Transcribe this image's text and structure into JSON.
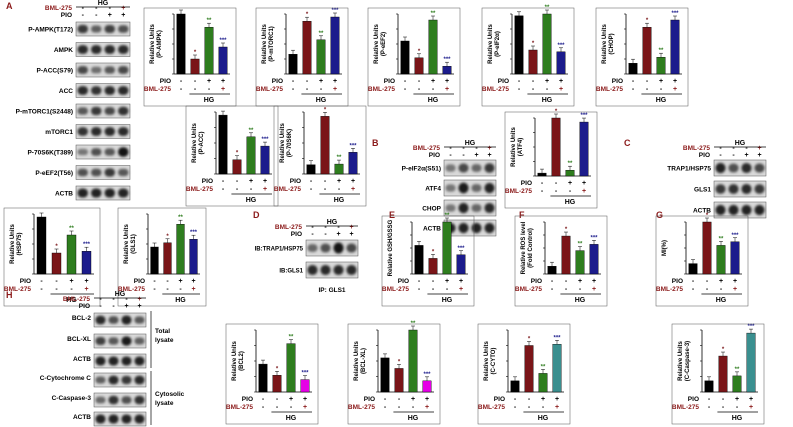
{
  "figure": {
    "panel_letters": [
      "A",
      "B",
      "C",
      "D",
      "E",
      "F",
      "G",
      "H"
    ],
    "colors": {
      "control": "#000000",
      "hg": "#7a1518",
      "hg_pio": "#2e7d1e",
      "hg_pio_bml": "#1c1c8c",
      "hg_pio_bml_h_bcl": "#e600e6",
      "hg_pio_bml_h_teal": "#3a8f8f",
      "red_text": "#8b1a1a"
    },
    "labels": {
      "hg": "HG",
      "pio": "PIO",
      "bml": "BML-275",
      "minus": "-",
      "plus": "+",
      "actb": "ACTB",
      "star1": "*",
      "star2": "**",
      "star3": "***",
      "total_lysate": "Total lysate",
      "cytosolic_lysate": "Cytosolic lysate",
      "ip_gls1": "IP: GLS1"
    },
    "panel_a_blots": [
      "P-AMPK(T172)",
      "AMPK",
      "P-ACC(S79)",
      "ACC",
      "P-mTORC1(S2448)",
      "mTORC1",
      "P-70S6K(T389)",
      "P-eEF2(T56)",
      "ACTB"
    ],
    "panel_b_blots": [
      "P-eIF2α(S51)",
      "ATF4",
      "CHOP",
      "ACTB"
    ],
    "panel_c_blots": [
      "TRAP1/HSP75",
      "GLS1",
      "ACTB"
    ],
    "panel_d_blots": [
      "IB:TRAP1/HSP75",
      "IB:GLS1"
    ],
    "panel_h_blots": [
      "BCL-2",
      "BCL-XL",
      "ACTB",
      "C-Cytochrome C",
      "C-Caspase-3",
      "ACTB"
    ]
  },
  "chart_data": [
    {
      "type": "bar",
      "panel": "A",
      "ylabel": "Relative Units (P-AMPK)",
      "categories": [
        "Ctrl",
        "HG",
        "HG+PIO",
        "HG+PIO+BML-275"
      ],
      "values": [
        1.0,
        0.25,
        0.78,
        0.45
      ],
      "significance": [
        "",
        "*",
        "**",
        "***"
      ]
    },
    {
      "type": "bar",
      "panel": "A",
      "ylabel": "Relative Units (P-mTORC1)",
      "categories": [
        "Ctrl",
        "HG",
        "HG+PIO",
        "HG+PIO+BML-275"
      ],
      "values": [
        0.33,
        0.88,
        0.57,
        0.95
      ],
      "significance": [
        "",
        "*",
        "**",
        "***"
      ]
    },
    {
      "type": "bar",
      "panel": "A",
      "ylabel": "Relative Units (P-eEF2)",
      "categories": [
        "Ctrl",
        "HG",
        "HG+PIO",
        "HG+PIO+BML-275"
      ],
      "values": [
        0.55,
        0.27,
        0.9,
        0.13
      ],
      "significance": [
        "",
        "*",
        "**",
        "***"
      ]
    },
    {
      "type": "bar",
      "panel": "A",
      "ylabel": "Relative Units (P-eIF2α)",
      "categories": [
        "Ctrl",
        "HG",
        "HG+PIO",
        "HG+PIO+BML-275"
      ],
      "values": [
        0.97,
        0.4,
        1.0,
        0.37
      ],
      "significance": [
        "",
        "*",
        "**",
        "***"
      ]
    },
    {
      "type": "bar",
      "panel": "A",
      "ylabel": "Relative Units (CHOP)",
      "categories": [
        "Ctrl",
        "HG",
        "HG+PIO",
        "HG+PIO+BML-275"
      ],
      "values": [
        0.18,
        0.78,
        0.28,
        0.9
      ],
      "significance": [
        "",
        "*",
        "**",
        "***"
      ]
    },
    {
      "type": "bar",
      "panel": "A",
      "ylabel": "Relative Units (P-ACC)",
      "categories": [
        "Ctrl",
        "HG",
        "HG+PIO",
        "HG+PIO+BML-275"
      ],
      "values": [
        0.95,
        0.23,
        0.6,
        0.45
      ],
      "significance": [
        "",
        "*",
        "**",
        "***"
      ]
    },
    {
      "type": "bar",
      "panel": "A",
      "ylabel": "Relative Units (P-70S6K)",
      "categories": [
        "Ctrl",
        "HG",
        "HG+PIO",
        "HG+PIO+BML-275"
      ],
      "values": [
        0.15,
        0.93,
        0.16,
        0.35
      ],
      "significance": [
        "",
        "*",
        "**",
        "***"
      ]
    },
    {
      "type": "bar",
      "panel": "B",
      "ylabel": "Relative Units (ATF4)",
      "categories": [
        "Ctrl",
        "HG",
        "HG+PIO",
        "HG+PIO+BML-275"
      ],
      "values": [
        0.05,
        1.0,
        0.1,
        0.93
      ],
      "significance": [
        "",
        "*",
        "**",
        "***"
      ]
    },
    {
      "type": "bar",
      "panel": "C",
      "ylabel": "Relative Units (HSP75)",
      "categories": [
        "Ctrl",
        "HG",
        "HG+PIO",
        "HG+PIO+BML-275"
      ],
      "values": [
        0.95,
        0.35,
        0.65,
        0.38
      ],
      "significance": [
        "",
        "*",
        "**",
        "***"
      ]
    },
    {
      "type": "bar",
      "panel": "C",
      "ylabel": "Relative Units (GLS1)",
      "categories": [
        "Ctrl",
        "HG",
        "HG+PIO",
        "HG+PIO+BML-275"
      ],
      "values": [
        0.45,
        0.52,
        0.83,
        0.58
      ],
      "significance": [
        "",
        "*",
        "**",
        "***"
      ]
    },
    {
      "type": "bar",
      "panel": "E",
      "ylabel": "Relative GSH/GSSG",
      "categories": [
        "Ctrl",
        "HG",
        "HG+PIO",
        "HG+PIO+BML-275"
      ],
      "values": [
        0.55,
        0.3,
        1.0,
        0.37
      ],
      "significance": [
        "",
        "*",
        "**",
        "***"
      ]
    },
    {
      "type": "bar",
      "panel": "F",
      "ylabel": "Relative ROS level (Fold Control)",
      "categories": [
        "Ctrl",
        "HG",
        "HG+PIO",
        "HG+PIO+BML-275"
      ],
      "values": [
        0.15,
        0.73,
        0.45,
        0.57
      ],
      "significance": [
        "",
        "*",
        "**",
        "***"
      ]
    },
    {
      "type": "bar",
      "panel": "G",
      "ylabel": "MI(%)",
      "categories": [
        "Ctrl",
        "HG",
        "HG+PIO",
        "HG+PIO+BML-275"
      ],
      "values": [
        0.2,
        1.0,
        0.55,
        0.62
      ],
      "significance": [
        "",
        "*",
        "**",
        "***"
      ]
    },
    {
      "type": "bar",
      "panel": "H",
      "ylabel": "Relative Units (BCL2)",
      "categories": [
        "Ctrl",
        "HG",
        "HG+PIO",
        "HG+PIO+BML-275"
      ],
      "values": [
        0.45,
        0.27,
        0.78,
        0.2
      ],
      "significance": [
        "",
        "*",
        "**",
        "***"
      ]
    },
    {
      "type": "bar",
      "panel": "H",
      "ylabel": "Relative Units (BCL-XL)",
      "categories": [
        "Ctrl",
        "HG",
        "HG+PIO",
        "HG+PIO+BML-275"
      ],
      "values": [
        0.55,
        0.38,
        1.0,
        0.18
      ],
      "significance": [
        "",
        "*",
        "**",
        "***"
      ]
    },
    {
      "type": "bar",
      "panel": "H",
      "ylabel": "Relative Units (C-CYTO)",
      "categories": [
        "Ctrl",
        "HG",
        "HG+PIO",
        "HG+PIO+BML-275"
      ],
      "values": [
        0.18,
        0.75,
        0.3,
        0.77
      ],
      "significance": [
        "",
        "*",
        "**",
        "***"
      ]
    },
    {
      "type": "bar",
      "panel": "H",
      "ylabel": "Relative Units (C-Caspase-3)",
      "categories": [
        "Ctrl",
        "HG",
        "HG+PIO",
        "HG+PIO+BML-275"
      ],
      "values": [
        0.18,
        0.58,
        0.26,
        0.95
      ],
      "significance": [
        "",
        "*",
        "**",
        "***"
      ]
    }
  ]
}
